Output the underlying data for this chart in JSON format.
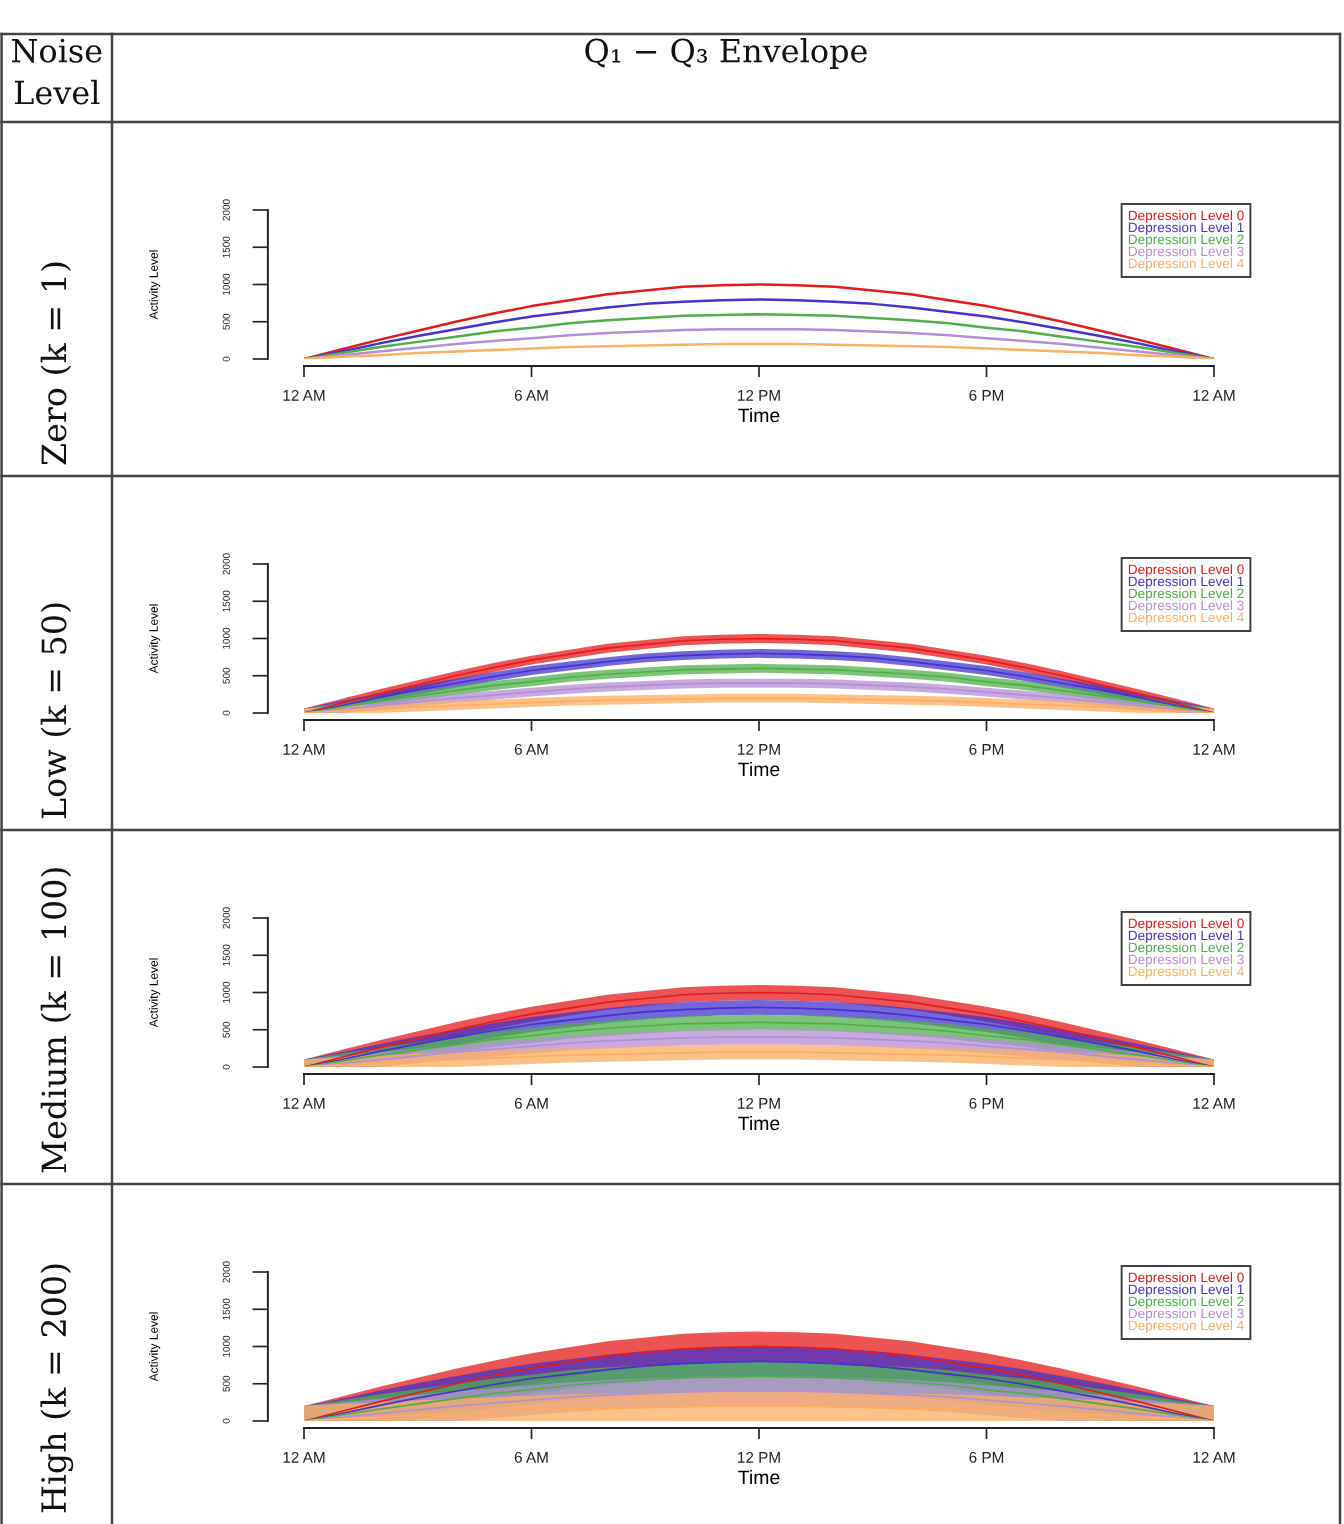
{
  "chart_data": [
    {
      "type": "line",
      "title": "Zero (k = 1)",
      "annotations": [
        "Noise Level",
        "Q₁ − Q₃ Envelope"
      ],
      "xlabel": "Time",
      "ylabel": "Activity Level",
      "legend": "top right",
      "categories": [
        "12 AM",
        null,
        null,
        null,
        null,
        null,
        "6 AM",
        null,
        null,
        null,
        null,
        null,
        "12 PM",
        null,
        null,
        null,
        null,
        null,
        "6 PM",
        null,
        null,
        null,
        null,
        null,
        "12 AM"
      ],
      "ylim": [
        0,
        2000
      ],
      "yticks": [
        0,
        500,
        1000,
        1500,
        2000
      ],
      "series": [
        {
          "name": "Depression Level 0",
          "color": "#e41a1c",
          "values": [
            0,
            130,
            260,
            380,
            500,
            610,
            710,
            790,
            870,
            920,
            970,
            990,
            1000,
            990,
            970,
            920,
            870,
            790,
            710,
            610,
            500,
            380,
            260,
            130,
            0
          ]
        },
        {
          "name": "Depression Level 1",
          "color": "#4433cc",
          "values": [
            0,
            100,
            210,
            310,
            400,
            490,
            570,
            630,
            690,
            740,
            770,
            790,
            800,
            790,
            770,
            740,
            690,
            630,
            570,
            490,
            400,
            310,
            210,
            100,
            0
          ]
        },
        {
          "name": "Depression Level 2",
          "color": "#4daf4a",
          "values": [
            0,
            80,
            160,
            230,
            300,
            370,
            420,
            480,
            520,
            550,
            580,
            590,
            600,
            590,
            580,
            550,
            520,
            480,
            420,
            370,
            300,
            230,
            160,
            80,
            0
          ]
        },
        {
          "name": "Depression Level 3",
          "color": "#b48fd4",
          "values": [
            0,
            50,
            100,
            150,
            200,
            240,
            280,
            320,
            350,
            370,
            390,
            400,
            400,
            400,
            390,
            370,
            350,
            320,
            280,
            240,
            200,
            150,
            100,
            50,
            0
          ]
        },
        {
          "name": "Depression Level 4",
          "color": "#fdae61",
          "values": [
            0,
            30,
            50,
            80,
            100,
            120,
            140,
            160,
            170,
            180,
            190,
            200,
            200,
            200,
            190,
            180,
            170,
            160,
            140,
            120,
            100,
            80,
            50,
            30,
            0
          ]
        }
      ]
    },
    {
      "type": "line",
      "title": "Low (k = 50)",
      "xlabel": "Time",
      "ylabel": "Activity Level",
      "legend": "top right",
      "categories": [
        "12 AM",
        null,
        null,
        null,
        null,
        null,
        "6 AM",
        null,
        null,
        null,
        null,
        null,
        "12 PM",
        null,
        null,
        null,
        null,
        null,
        "6 PM",
        null,
        null,
        null,
        null,
        null,
        "12 AM"
      ],
      "ylim": [
        0,
        2000
      ],
      "yticks": [
        0,
        500,
        1000,
        1500,
        2000
      ],
      "series": [
        {
          "name": "Depression Level 0",
          "color": "#e41a1c",
          "values": [
            0,
            130,
            260,
            380,
            500,
            610,
            710,
            790,
            870,
            920,
            970,
            990,
            1000,
            990,
            970,
            920,
            870,
            790,
            710,
            610,
            500,
            380,
            260,
            130,
            0
          ],
          "lower": [
            0,
            70,
            200,
            320,
            440,
            550,
            650,
            730,
            810,
            860,
            910,
            930,
            940,
            930,
            910,
            860,
            810,
            730,
            650,
            550,
            440,
            320,
            200,
            70,
            0
          ],
          "upper": [
            60,
            190,
            320,
            440,
            560,
            670,
            770,
            850,
            930,
            980,
            1030,
            1050,
            1060,
            1050,
            1030,
            980,
            930,
            850,
            770,
            670,
            560,
            440,
            320,
            190,
            60
          ]
        },
        {
          "name": "Depression Level 1",
          "color": "#4433cc",
          "values": [
            0,
            100,
            210,
            310,
            400,
            490,
            570,
            630,
            690,
            740,
            770,
            790,
            800,
            790,
            770,
            740,
            690,
            630,
            570,
            490,
            400,
            310,
            210,
            100,
            0
          ],
          "lower": [
            0,
            40,
            150,
            250,
            340,
            430,
            510,
            570,
            630,
            680,
            710,
            730,
            740,
            730,
            710,
            680,
            630,
            570,
            510,
            430,
            340,
            250,
            150,
            40,
            0
          ],
          "upper": [
            60,
            160,
            270,
            370,
            460,
            550,
            630,
            690,
            750,
            800,
            830,
            850,
            860,
            850,
            830,
            800,
            750,
            690,
            630,
            550,
            460,
            370,
            270,
            160,
            60
          ]
        },
        {
          "name": "Depression Level 2",
          "color": "#4daf4a",
          "values": [
            0,
            80,
            160,
            230,
            300,
            370,
            420,
            480,
            520,
            550,
            580,
            590,
            600,
            590,
            580,
            550,
            520,
            480,
            420,
            370,
            300,
            230,
            160,
            80,
            0
          ],
          "lower": [
            0,
            20,
            100,
            170,
            240,
            310,
            360,
            420,
            460,
            490,
            520,
            530,
            540,
            530,
            520,
            490,
            460,
            420,
            360,
            310,
            240,
            170,
            100,
            20,
            0
          ],
          "upper": [
            60,
            140,
            220,
            290,
            360,
            430,
            480,
            540,
            580,
            610,
            640,
            650,
            660,
            650,
            640,
            610,
            580,
            540,
            480,
            430,
            360,
            290,
            220,
            140,
            60
          ]
        },
        {
          "name": "Depression Level 3",
          "color": "#b48fd4",
          "values": [
            0,
            50,
            100,
            150,
            200,
            240,
            280,
            320,
            350,
            370,
            390,
            400,
            400,
            400,
            390,
            370,
            350,
            320,
            280,
            240,
            200,
            150,
            100,
            50,
            0
          ],
          "lower": [
            0,
            0,
            40,
            90,
            140,
            180,
            220,
            260,
            290,
            310,
            330,
            340,
            340,
            340,
            330,
            310,
            290,
            260,
            220,
            180,
            140,
            90,
            40,
            0,
            0
          ],
          "upper": [
            60,
            110,
            160,
            210,
            260,
            300,
            340,
            380,
            410,
            430,
            450,
            460,
            460,
            460,
            450,
            430,
            410,
            380,
            340,
            300,
            260,
            210,
            160,
            110,
            60
          ]
        },
        {
          "name": "Depression Level 4",
          "color": "#fdae61",
          "values": [
            0,
            30,
            50,
            80,
            100,
            120,
            140,
            160,
            170,
            180,
            190,
            200,
            200,
            200,
            190,
            180,
            170,
            160,
            140,
            120,
            100,
            80,
            50,
            30,
            0
          ],
          "lower": [
            0,
            0,
            0,
            20,
            40,
            60,
            80,
            100,
            110,
            120,
            130,
            140,
            140,
            140,
            130,
            120,
            110,
            100,
            80,
            60,
            40,
            20,
            0,
            0,
            0
          ],
          "upper": [
            60,
            90,
            110,
            140,
            160,
            180,
            200,
            220,
            230,
            240,
            250,
            260,
            260,
            260,
            250,
            240,
            230,
            220,
            200,
            180,
            160,
            140,
            110,
            90,
            60
          ]
        }
      ]
    },
    {
      "type": "line",
      "title": "Medium (k = 100)",
      "xlabel": "Time",
      "ylabel": "Activity Level",
      "legend": "top right",
      "categories": [
        "12 AM",
        null,
        null,
        null,
        null,
        null,
        "6 AM",
        null,
        null,
        null,
        null,
        null,
        "12 PM",
        null,
        null,
        null,
        null,
        null,
        "6 PM",
        null,
        null,
        null,
        null,
        null,
        "12 AM"
      ],
      "ylim": [
        0,
        2000
      ],
      "yticks": [
        0,
        500,
        1000,
        1500,
        2000
      ],
      "series": [
        {
          "name": "Depression Level 0",
          "color": "#e41a1c",
          "values": [
            0,
            130,
            260,
            380,
            500,
            610,
            710,
            790,
            870,
            920,
            970,
            990,
            1000,
            990,
            970,
            920,
            870,
            790,
            710,
            610,
            500,
            380,
            260,
            130,
            0
          ],
          "lower": [
            0,
            30,
            160,
            280,
            400,
            510,
            610,
            690,
            770,
            820,
            870,
            890,
            900,
            890,
            870,
            820,
            770,
            690,
            610,
            510,
            400,
            280,
            160,
            30,
            0
          ],
          "upper": [
            100,
            230,
            360,
            480,
            600,
            710,
            810,
            890,
            970,
            1020,
            1070,
            1090,
            1100,
            1090,
            1070,
            1020,
            970,
            890,
            810,
            710,
            600,
            480,
            360,
            230,
            100
          ]
        },
        {
          "name": "Depression Level 1",
          "color": "#4433cc",
          "values": [
            0,
            100,
            210,
            310,
            400,
            490,
            570,
            630,
            690,
            740,
            770,
            790,
            800,
            790,
            770,
            740,
            690,
            630,
            570,
            490,
            400,
            310,
            210,
            100,
            0
          ],
          "lower": [
            0,
            0,
            110,
            210,
            300,
            390,
            470,
            530,
            590,
            640,
            670,
            690,
            700,
            690,
            670,
            640,
            590,
            530,
            470,
            390,
            300,
            210,
            110,
            0,
            0
          ],
          "upper": [
            100,
            200,
            310,
            410,
            500,
            590,
            670,
            730,
            790,
            840,
            870,
            890,
            900,
            890,
            870,
            840,
            790,
            730,
            670,
            590,
            500,
            410,
            310,
            200,
            100
          ]
        },
        {
          "name": "Depression Level 2",
          "color": "#4daf4a",
          "values": [
            0,
            80,
            160,
            230,
            300,
            370,
            420,
            480,
            520,
            550,
            580,
            590,
            600,
            590,
            580,
            550,
            520,
            480,
            420,
            370,
            300,
            230,
            160,
            80,
            0
          ],
          "lower": [
            0,
            0,
            60,
            130,
            200,
            270,
            320,
            380,
            420,
            450,
            480,
            490,
            500,
            490,
            480,
            450,
            420,
            380,
            320,
            270,
            200,
            130,
            60,
            0,
            0
          ],
          "upper": [
            100,
            180,
            260,
            330,
            400,
            470,
            520,
            580,
            620,
            650,
            680,
            690,
            700,
            690,
            680,
            650,
            620,
            580,
            520,
            470,
            400,
            330,
            260,
            180,
            100
          ]
        },
        {
          "name": "Depression Level 3",
          "color": "#b48fd4",
          "values": [
            0,
            50,
            100,
            150,
            200,
            240,
            280,
            320,
            350,
            370,
            390,
            400,
            400,
            400,
            390,
            370,
            350,
            320,
            280,
            240,
            200,
            150,
            100,
            50,
            0
          ],
          "lower": [
            0,
            0,
            0,
            50,
            100,
            140,
            180,
            220,
            250,
            270,
            290,
            300,
            300,
            300,
            290,
            270,
            250,
            220,
            180,
            140,
            100,
            50,
            0,
            0,
            0
          ],
          "upper": [
            100,
            150,
            200,
            250,
            300,
            340,
            380,
            420,
            450,
            470,
            490,
            500,
            500,
            500,
            490,
            470,
            450,
            420,
            380,
            340,
            300,
            250,
            200,
            150,
            100
          ]
        },
        {
          "name": "Depression Level 4",
          "color": "#fdae61",
          "values": [
            0,
            30,
            50,
            80,
            100,
            120,
            140,
            160,
            170,
            180,
            190,
            200,
            200,
            200,
            190,
            180,
            170,
            160,
            140,
            120,
            100,
            80,
            50,
            30,
            0
          ],
          "lower": [
            0,
            0,
            0,
            0,
            0,
            20,
            40,
            60,
            70,
            80,
            90,
            100,
            100,
            100,
            90,
            80,
            70,
            60,
            40,
            20,
            0,
            0,
            0,
            0,
            0
          ],
          "upper": [
            100,
            130,
            150,
            180,
            200,
            220,
            240,
            260,
            270,
            280,
            290,
            300,
            300,
            300,
            290,
            280,
            270,
            260,
            240,
            220,
            200,
            180,
            150,
            130,
            100
          ]
        }
      ]
    },
    {
      "type": "line",
      "title": "High (k = 200)",
      "xlabel": "Time",
      "ylabel": "Activity Level",
      "legend": "top right",
      "categories": [
        "12 AM",
        null,
        null,
        null,
        null,
        null,
        "6 AM",
        null,
        null,
        null,
        null,
        null,
        "12 PM",
        null,
        null,
        null,
        null,
        null,
        "6 PM",
        null,
        null,
        null,
        null,
        null,
        "12 AM"
      ],
      "ylim": [
        0,
        2000
      ],
      "yticks": [
        0,
        500,
        1000,
        1500,
        2000
      ],
      "series": [
        {
          "name": "Depression Level 0",
          "color": "#e41a1c",
          "values": [
            0,
            130,
            260,
            380,
            500,
            610,
            710,
            790,
            870,
            920,
            970,
            990,
            1000,
            990,
            970,
            920,
            870,
            790,
            710,
            610,
            500,
            380,
            260,
            130,
            0
          ],
          "lower": [
            0,
            0,
            60,
            180,
            300,
            410,
            510,
            590,
            670,
            720,
            770,
            790,
            800,
            790,
            770,
            720,
            670,
            590,
            510,
            410,
            300,
            180,
            60,
            0,
            0
          ],
          "upper": [
            200,
            330,
            460,
            580,
            700,
            810,
            910,
            990,
            1070,
            1120,
            1170,
            1190,
            1200,
            1190,
            1170,
            1120,
            1070,
            990,
            910,
            810,
            700,
            580,
            460,
            330,
            200
          ]
        },
        {
          "name": "Depression Level 1",
          "color": "#4433cc",
          "values": [
            0,
            100,
            210,
            310,
            400,
            490,
            570,
            630,
            690,
            740,
            770,
            790,
            800,
            790,
            770,
            740,
            690,
            630,
            570,
            490,
            400,
            310,
            210,
            100,
            0
          ],
          "lower": [
            0,
            0,
            10,
            110,
            200,
            290,
            370,
            430,
            490,
            540,
            570,
            590,
            600,
            590,
            570,
            540,
            490,
            430,
            370,
            290,
            200,
            110,
            10,
            0,
            0
          ],
          "upper": [
            200,
            300,
            410,
            510,
            600,
            690,
            770,
            830,
            890,
            940,
            970,
            990,
            1000,
            990,
            970,
            940,
            890,
            830,
            770,
            690,
            600,
            510,
            410,
            300,
            200
          ]
        },
        {
          "name": "Depression Level 2",
          "color": "#4daf4a",
          "values": [
            0,
            80,
            160,
            230,
            300,
            370,
            420,
            480,
            520,
            550,
            580,
            590,
            600,
            590,
            580,
            550,
            520,
            480,
            420,
            370,
            300,
            230,
            160,
            80,
            0
          ],
          "lower": [
            0,
            0,
            0,
            30,
            100,
            170,
            220,
            280,
            320,
            350,
            380,
            390,
            400,
            390,
            380,
            350,
            320,
            280,
            220,
            170,
            100,
            30,
            0,
            0,
            0
          ],
          "upper": [
            200,
            280,
            360,
            430,
            500,
            570,
            620,
            680,
            720,
            750,
            780,
            790,
            800,
            790,
            780,
            750,
            720,
            680,
            620,
            570,
            500,
            430,
            360,
            280,
            200
          ]
        },
        {
          "name": "Depression Level 3",
          "color": "#b48fd4",
          "values": [
            0,
            50,
            100,
            150,
            200,
            240,
            280,
            320,
            350,
            370,
            390,
            400,
            400,
            400,
            390,
            370,
            350,
            320,
            280,
            240,
            200,
            150,
            100,
            50,
            0
          ],
          "lower": [
            0,
            0,
            0,
            0,
            0,
            40,
            80,
            120,
            150,
            170,
            190,
            200,
            200,
            200,
            190,
            170,
            150,
            120,
            80,
            40,
            0,
            0,
            0,
            0,
            0
          ],
          "upper": [
            200,
            250,
            300,
            350,
            400,
            440,
            480,
            520,
            550,
            570,
            590,
            600,
            600,
            600,
            590,
            570,
            550,
            520,
            480,
            440,
            400,
            350,
            300,
            250,
            200
          ]
        },
        {
          "name": "Depression Level 4",
          "color": "#fdae61",
          "values": [
            0,
            30,
            50,
            80,
            100,
            120,
            140,
            160,
            170,
            180,
            190,
            200,
            200,
            200,
            190,
            180,
            170,
            160,
            140,
            120,
            100,
            80,
            50,
            30,
            0
          ],
          "lower": [
            0,
            0,
            0,
            0,
            0,
            0,
            0,
            0,
            0,
            0,
            0,
            0,
            0,
            0,
            0,
            0,
            0,
            0,
            0,
            0,
            0,
            0,
            0,
            0,
            0
          ],
          "upper": [
            200,
            230,
            250,
            280,
            300,
            320,
            340,
            360,
            370,
            380,
            390,
            400,
            400,
            400,
            390,
            380,
            370,
            360,
            340,
            320,
            300,
            280,
            250,
            230,
            200
          ]
        }
      ]
    }
  ]
}
